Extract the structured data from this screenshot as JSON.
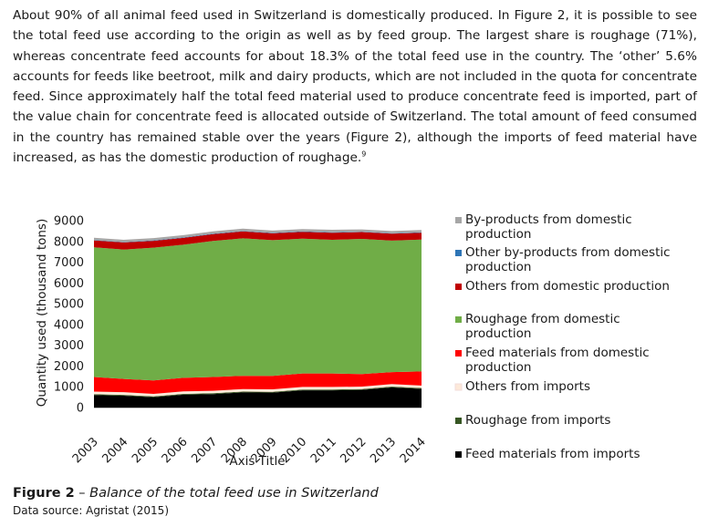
{
  "paragraph": {
    "text": "About 90% of all animal feed used in Switzerland is domestically produced. In Figure 2, it is possible to see the total feed use according to the origin as well as by feed group. The largest share is roughage (71%), whereas concentrate feed accounts for about 18.3% of the total feed use in the country. The ‘other’ 5.6% accounts for feeds like beetroot, milk and dairy products, which are not included in the quota for concentrate feed. Since approximately half the total feed material used to produce concentrate feed is imported, part of the value chain for concentrate feed is allocated outside of Switzerland. The total amount of feed consumed in the country has remained stable over the years (Figure 2), although the imports of feed material have increased, as has the domestic production of roughage.",
    "footnote": "9"
  },
  "caption": {
    "label": "Figure 2",
    "separator": " – ",
    "text": "Balance of the total feed use in Switzerland",
    "source": "Data source: Agristat (2015)"
  },
  "chart_data": {
    "type": "area",
    "stacked": true,
    "xlabel": "Axis Title",
    "ylabel": "Quantity used (thousand tons)",
    "ylim": [
      0,
      9000
    ],
    "yticks": [
      "0",
      "1000",
      "2000",
      "3000",
      "4000",
      "5000",
      "6000",
      "7000",
      "8000",
      "9000"
    ],
    "x": [
      "2003",
      "2004",
      "2005",
      "2006",
      "2007",
      "2008",
      "2009",
      "2010",
      "2011",
      "2012",
      "2013",
      "2014"
    ],
    "legend_position": "right",
    "grid": false,
    "series": [
      {
        "name": "Feed materials from imports",
        "color": "#000000",
        "values": [
          600,
          570,
          500,
          620,
          650,
          730,
          720,
          830,
          830,
          850,
          970,
          900
        ]
      },
      {
        "name": "Roughage from imports",
        "color": "#375623",
        "values": [
          40,
          40,
          40,
          40,
          40,
          40,
          40,
          40,
          40,
          40,
          40,
          40
        ]
      },
      {
        "name": "Others from imports",
        "color": "#fde9d9",
        "values": [
          130,
          130,
          120,
          120,
          120,
          120,
          120,
          120,
          120,
          120,
          120,
          120
        ]
      },
      {
        "name": "Feed materials from domestic production",
        "color": "#ff0000",
        "values": [
          700,
          640,
          650,
          650,
          660,
          640,
          650,
          650,
          650,
          600,
          580,
          680
        ]
      },
      {
        "name": "Roughage from domestic production",
        "color": "#70ad47",
        "values": [
          6250,
          6230,
          6390,
          6410,
          6550,
          6620,
          6530,
          6490,
          6440,
          6510,
          6330,
          6350
        ]
      },
      {
        "name": "Others from domestic production",
        "color": "#c00000",
        "values": [
          330,
          340,
          330,
          330,
          330,
          330,
          330,
          330,
          340,
          330,
          330,
          330
        ]
      },
      {
        "name": "Other by-products  from domestic production",
        "color": "#2e75b6",
        "values": [
          20,
          20,
          20,
          20,
          20,
          20,
          20,
          20,
          20,
          20,
          20,
          20
        ]
      },
      {
        "name": "By-products from domestic production",
        "color": "#a6a6a6",
        "values": [
          110,
          110,
          110,
          110,
          110,
          120,
          110,
          110,
          120,
          110,
          110,
          110
        ]
      }
    ],
    "legend_order": [
      {
        "label": "By-products from domestic",
        "label2": "production",
        "color": "#a6a6a6"
      },
      {
        "label": "Other by-products  from domestic",
        "label2": "production",
        "color": "#2e75b6"
      },
      {
        "label": "Others from domestic production",
        "label2": "",
        "color": "#c00000"
      },
      {
        "label": "Roughage from domestic",
        "label2": "production",
        "color": "#70ad47"
      },
      {
        "label": "Feed materials from domestic",
        "label2": "production",
        "color": "#ff0000"
      },
      {
        "label": "Others from imports",
        "label2": "",
        "color": "#fde9d9"
      },
      {
        "label": "Roughage from imports",
        "label2": "",
        "color": "#375623"
      },
      {
        "label": "Feed materials from imports",
        "label2": "",
        "color": "#000000"
      }
    ]
  }
}
